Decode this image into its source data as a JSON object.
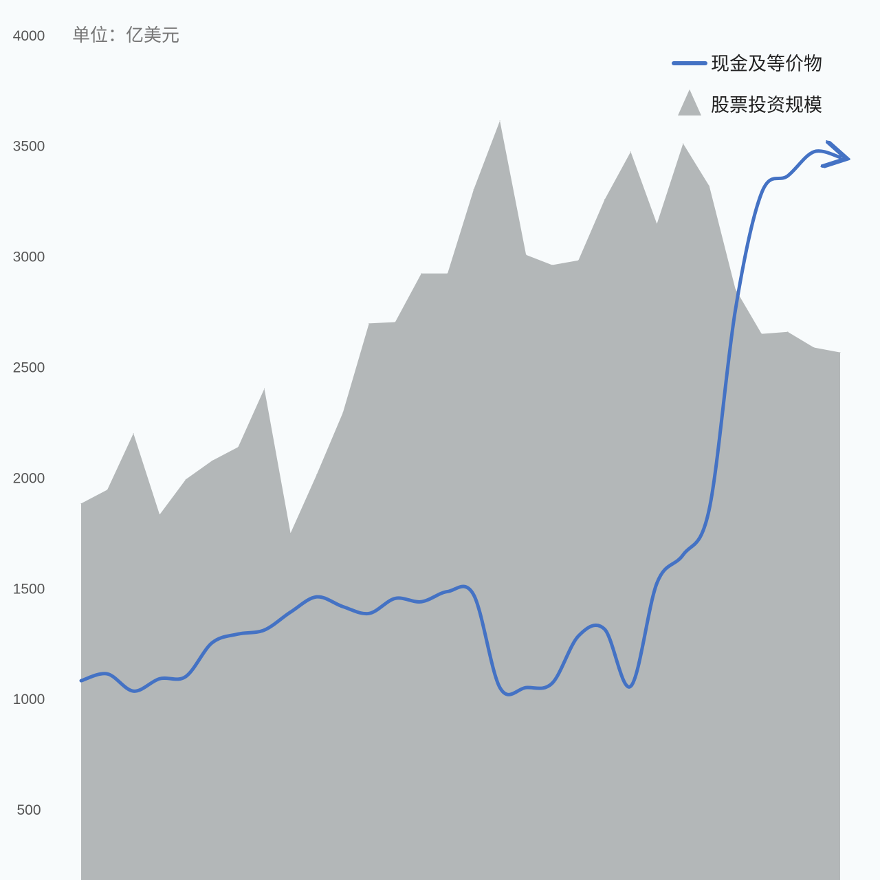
{
  "chart_data": {
    "type": "line+area",
    "unit_label": "单位：亿美元",
    "ylim": [
      0,
      4000
    ],
    "y_ticks": [
      500,
      1000,
      1500,
      2000,
      2500,
      3000,
      3500,
      4000
    ],
    "legend_position": "top-right",
    "grid": false,
    "series": [
      {
        "name": "现金及等价物",
        "type": "line",
        "color": "#4472c4",
        "values": [
          1081,
          1112,
          1034,
          1090,
          1100,
          1252,
          1292,
          1310,
          1391,
          1460,
          1416,
          1385,
          1453,
          1438,
          1484,
          1469,
          1050,
          1050,
          1070,
          1283,
          1314,
          1056,
          1522,
          1650,
          1857,
          2758,
          3286,
          3363,
          3472,
          3447
        ]
      },
      {
        "name": "股票投资规模",
        "type": "area",
        "color": "#b3b7b8",
        "values": [
          1882,
          1944,
          2199,
          1832,
          1991,
          2075,
          2137,
          2401,
          1748,
          2012,
          2292,
          2696,
          2702,
          2922,
          2922,
          3301,
          3612,
          3006,
          2960,
          2981,
          3255,
          3472,
          3146,
          3509,
          3317,
          2851,
          2649,
          2658,
          2587,
          2565
        ]
      }
    ]
  }
}
